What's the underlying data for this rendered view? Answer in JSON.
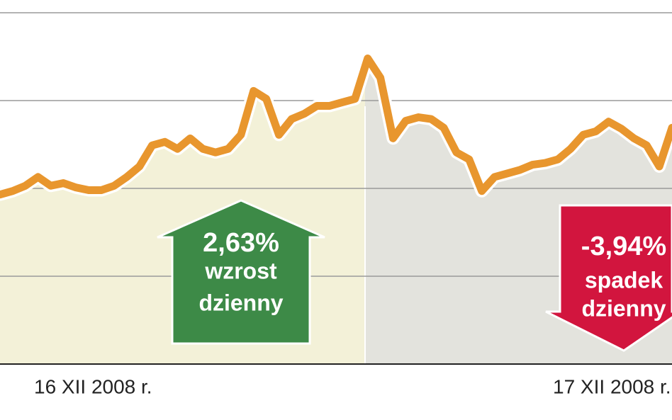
{
  "chart_data": {
    "type": "line",
    "categories": [
      null,
      null,
      null,
      null,
      null,
      null,
      null,
      null,
      null,
      null,
      null,
      null,
      null,
      null,
      null,
      null,
      null,
      null,
      null,
      null,
      null,
      null,
      null,
      null,
      null,
      null,
      null,
      null,
      null,
      null,
      null,
      null,
      null,
      null,
      null,
      null,
      null,
      null,
      null,
      null,
      null,
      null,
      null,
      null,
      null,
      null,
      null,
      null,
      null,
      null,
      null,
      null,
      null,
      null
    ],
    "values": [
      1.93,
      1.97,
      2.03,
      2.13,
      2.03,
      2.06,
      2.01,
      1.98,
      1.98,
      2.03,
      2.13,
      2.25,
      2.49,
      2.53,
      2.45,
      2.57,
      2.45,
      2.41,
      2.45,
      2.61,
      3.11,
      3.02,
      2.61,
      2.79,
      2.85,
      2.94,
      2.94,
      2.98,
      3.02,
      3.48,
      3.26,
      2.57,
      2.77,
      2.81,
      2.79,
      2.69,
      2.41,
      2.33,
      1.97,
      2.13,
      2.17,
      2.21,
      2.27,
      2.29,
      2.33,
      2.45,
      2.61,
      2.65,
      2.76,
      2.68,
      2.57,
      2.49,
      2.25,
      2.69
    ],
    "color": "#e8962e",
    "ylim": [
      0,
      4
    ],
    "yticks": [
      1,
      2,
      3,
      4
    ],
    "grid": true,
    "days": [
      {
        "label": "16 XII 2008 r.",
        "color": "#f3f1d8",
        "change": "2,63%",
        "text": [
          "wzrost",
          "dzienny"
        ],
        "arrow_color": "#3d8a47"
      },
      {
        "label": "17 XII 2008 r.",
        "color": "#e3e3dd",
        "change": "-3,94%",
        "text": [
          "spadek",
          "dzienny"
        ],
        "arrow_color": "#d2153e"
      }
    ]
  }
}
